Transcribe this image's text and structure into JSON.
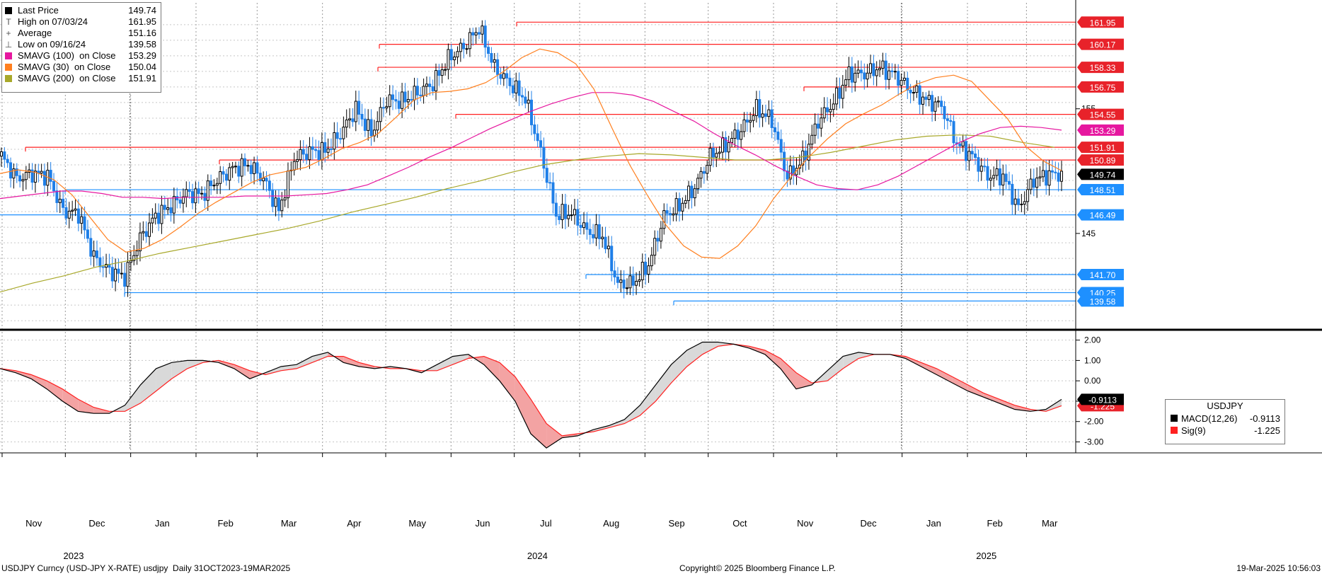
{
  "legend": {
    "items": [
      {
        "label": "Last Price",
        "value": "149.74",
        "color": "#000000",
        "symbol": ""
      },
      {
        "label": "High on 07/03/24",
        "value": "161.95",
        "color": "",
        "symbol": "T"
      },
      {
        "label": "Average",
        "value": "151.16",
        "color": "",
        "symbol": "+"
      },
      {
        "label": "Low on 09/16/24",
        "value": "139.58",
        "color": "",
        "symbol": "⊥"
      },
      {
        "label": "SMAVG (100)  on Close",
        "value": "153.29",
        "color": "#e6179f",
        "symbol": ""
      },
      {
        "label": "SMAVG (30)  on Close",
        "value": "150.04",
        "color": "#ff7f1e",
        "symbol": ""
      },
      {
        "label": "SMAVG (200)  on Close",
        "value": "151.91",
        "color": "#a8a82a",
        "symbol": ""
      }
    ]
  },
  "macd_legend": {
    "title": "USDJPY",
    "rows": [
      {
        "label": "MACD(12,26)",
        "value": "-0.9113",
        "color": "#000000"
      },
      {
        "label": "Sig(9)",
        "value": "-1.225",
        "color": "#ff2020"
      }
    ]
  },
  "footer": {
    "left": "USDJPY Curncy (USD-JPY X-RATE) usdjpy  Daily 31OCT2023-19MAR2025",
    "center": "Copyright© 2025 Bloomberg Finance L.P.",
    "right": "19-Mar-2025 10:56:03"
  },
  "chart_data": [
    {
      "type": "candlestick",
      "title": "",
      "x_range": [
        "2023-10-31",
        "2025-03-19"
      ],
      "y_range": [
        137.5,
        163.5
      ],
      "y_ticks": [
        145,
        155
      ],
      "grid": true,
      "month_labels": [
        "Nov",
        "Dec",
        "Jan",
        "Feb",
        "Mar",
        "Apr",
        "May",
        "Jun",
        "Jul",
        "Aug",
        "Sep",
        "Oct",
        "Nov",
        "Dec",
        "Jan",
        "Feb",
        "Mar"
      ],
      "year_labels": [
        {
          "label": "2023",
          "month_index": 0
        },
        {
          "label": "2024",
          "month_index": 8
        },
        {
          "label": "2025",
          "month_index": 15
        }
      ],
      "last_price": 149.74,
      "closes_weekly": [
        151.2,
        149.4,
        149.8,
        149.6,
        146.8,
        146.6,
        143.1,
        142.0,
        141.5,
        144.6,
        146.4,
        147.2,
        148.2,
        148.1,
        149.3,
        150.2,
        150.5,
        149.4,
        146.8,
        151.0,
        151.6,
        151.6,
        153.0,
        155.0,
        153.0,
        155.7,
        155.6,
        156.3,
        157.0,
        159.0,
        160.0,
        161.5,
        158.3,
        157.0,
        155.8,
        151.5,
        146.5,
        146.6,
        145.2,
        144.8,
        140.9,
        141.0,
        142.5,
        146.4,
        147.2,
        148.7,
        151.2,
        152.1,
        153.3,
        155.0,
        154.1,
        149.5,
        150.9,
        154.0,
        155.5,
        157.8,
        157.8,
        158.3,
        157.7,
        156.5,
        155.7,
        155.2,
        152.2,
        151.2,
        149.6,
        149.6,
        147.0,
        149.3,
        149.74
      ],
      "sma_100": [
        147.8,
        148.0,
        148.2,
        148.4,
        148.4,
        148.2,
        147.9,
        147.9,
        147.8,
        147.9,
        147.9,
        147.9,
        148.0,
        148.0,
        148.0,
        148.1,
        148.2,
        148.5,
        148.9,
        149.6,
        150.3,
        151.1,
        151.8,
        152.6,
        153.4,
        154.1,
        154.8,
        155.4,
        155.9,
        156.3,
        156.3,
        156.1,
        155.6,
        154.8,
        154.0,
        153.0,
        152.1,
        151.3,
        150.4,
        149.6,
        148.9,
        148.6,
        148.5,
        148.9,
        149.6,
        150.5,
        151.4,
        152.3,
        153.0,
        153.5,
        153.6,
        153.5,
        153.29
      ],
      "sma_30": [
        149.8,
        150.1,
        149.9,
        149.3,
        148.1,
        146.3,
        144.5,
        143.5,
        143.8,
        144.5,
        145.5,
        146.6,
        147.5,
        148.3,
        149.1,
        149.7,
        150.0,
        150.3,
        151.0,
        151.8,
        152.3,
        153.0,
        154.3,
        155.7,
        156.3,
        156.4,
        156.6,
        157.1,
        158.0,
        159.1,
        159.8,
        159.5,
        158.6,
        156.6,
        153.5,
        150.5,
        148.0,
        145.7,
        144.0,
        143.1,
        143.0,
        144.0,
        145.6,
        147.8,
        149.6,
        151.2,
        152.6,
        153.8,
        154.6,
        155.3,
        156.2,
        157.0,
        157.5,
        157.7,
        157.2,
        155.7,
        154.2,
        152.0,
        150.8,
        150.04
      ],
      "sma_200": [
        140.3,
        141.0,
        141.6,
        142.3,
        142.8,
        143.4,
        143.9,
        144.4,
        144.9,
        145.4,
        146.0,
        146.7,
        147.3,
        147.9,
        148.6,
        149.2,
        149.9,
        150.5,
        150.9,
        151.2,
        151.4,
        151.3,
        151.1,
        150.9,
        150.9,
        151.1,
        151.5,
        152.0,
        152.5,
        152.8,
        152.9,
        152.8,
        152.3,
        151.91
      ],
      "horizontal_levels": [
        {
          "value": 161.95,
          "label": "161.95",
          "color": "#ff2020"
        },
        {
          "value": 160.17,
          "label": "160.17",
          "color": "#ff2020"
        },
        {
          "value": 158.33,
          "label": "158.33",
          "color": "#ff2020"
        },
        {
          "value": 156.75,
          "label": "156.75",
          "color": "#ff2020"
        },
        {
          "value": 154.55,
          "label": "154.55",
          "color": "#ff2020"
        },
        {
          "value": 151.91,
          "label": "151.91",
          "color": "#ff2020"
        },
        {
          "value": 150.89,
          "label": "150.89",
          "color": "#ff2020"
        },
        {
          "value": 148.51,
          "label": "148.51",
          "color": "#1e90ff"
        },
        {
          "value": 146.49,
          "label": "146.49",
          "color": "#1e90ff"
        },
        {
          "value": 141.7,
          "label": "141.70",
          "color": "#1e90ff"
        },
        {
          "value": 140.25,
          "label": "140.25",
          "color": "#1e90ff"
        },
        {
          "value": 139.58,
          "label": "139.58",
          "color": "#1e90ff"
        }
      ],
      "right_badges": [
        {
          "value": 153.29,
          "label": "153.29",
          "color": "#e6179f"
        },
        {
          "value": 149.74,
          "label": "149.74",
          "color": "#000000"
        }
      ],
      "colors": {
        "up": "#000000",
        "down": "#1e7fe8",
        "sma_100": "#e6179f",
        "sma_30": "#ff7f1e",
        "sma_200": "#a8a82a"
      }
    },
    {
      "type": "line",
      "title": "",
      "y_range": [
        -3.4,
        2.3
      ],
      "y_ticks": [
        2.0,
        1.0,
        0.0,
        -1.0,
        -2.0,
        -3.0
      ],
      "y_tick_labels": [
        "2.00",
        "1.00",
        "0.00",
        "-1.00",
        "-2.00",
        "-3.00"
      ],
      "series": [
        {
          "name": "MACD(12,26)",
          "color": "#000000",
          "values": [
            0.6,
            0.4,
            0.1,
            -0.4,
            -1.0,
            -1.5,
            -1.6,
            -1.6,
            -1.2,
            -0.2,
            0.6,
            0.9,
            1.0,
            1.0,
            0.9,
            0.6,
            0.1,
            0.4,
            0.7,
            0.8,
            1.2,
            1.4,
            0.9,
            0.7,
            0.6,
            0.7,
            0.6,
            0.4,
            0.8,
            1.2,
            1.3,
            0.8,
            0.0,
            -1.0,
            -2.6,
            -3.3,
            -2.8,
            -2.7,
            -2.4,
            -2.2,
            -1.9,
            -1.2,
            -0.2,
            0.8,
            1.5,
            1.9,
            1.9,
            1.8,
            1.6,
            1.3,
            0.6,
            -0.4,
            -0.2,
            0.5,
            1.2,
            1.4,
            1.3,
            1.3,
            1.1,
            0.7,
            0.3,
            -0.1,
            -0.5,
            -0.8,
            -1.1,
            -1.4,
            -1.5,
            -1.4,
            -0.91
          ]
        },
        {
          "name": "Sig(9)",
          "color": "#ff2020",
          "values": [
            0.6,
            0.5,
            0.3,
            0.0,
            -0.4,
            -0.9,
            -1.3,
            -1.5,
            -1.5,
            -1.1,
            -0.5,
            0.1,
            0.6,
            0.9,
            1.0,
            0.8,
            0.5,
            0.3,
            0.5,
            0.6,
            0.9,
            1.2,
            1.2,
            0.9,
            0.7,
            0.6,
            0.6,
            0.5,
            0.5,
            0.8,
            1.1,
            1.2,
            0.9,
            0.2,
            -0.9,
            -2.1,
            -2.7,
            -2.6,
            -2.5,
            -2.3,
            -2.1,
            -1.7,
            -1.0,
            -0.1,
            0.7,
            1.3,
            1.7,
            1.8,
            1.7,
            1.5,
            1.1,
            0.4,
            -0.1,
            0.0,
            0.6,
            1.1,
            1.3,
            1.3,
            1.2,
            0.9,
            0.6,
            0.2,
            -0.2,
            -0.6,
            -0.9,
            -1.2,
            -1.4,
            -1.5,
            -1.225
          ]
        }
      ],
      "right_badges": [
        {
          "value": -0.9113,
          "label": "-0.9113",
          "color": "#000000"
        },
        {
          "value": -1.225,
          "label": "-1.225",
          "color": "#ff2020"
        }
      ]
    }
  ]
}
